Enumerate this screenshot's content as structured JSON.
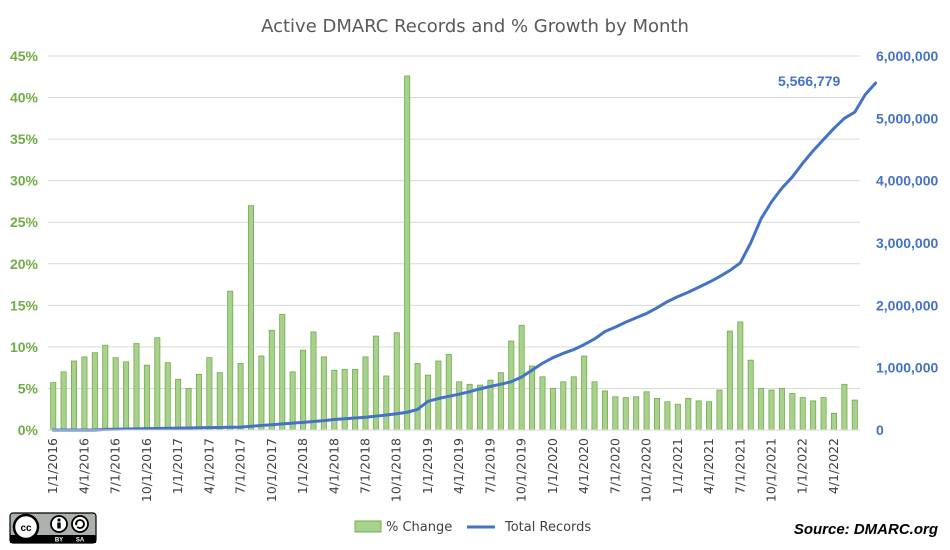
{
  "chart_data": {
    "type": "bar+line",
    "title": "Active DMARC Records and % Growth by Month",
    "x_labels": [
      "1/1/2016",
      "4/1/2016",
      "7/1/2016",
      "10/1/2016",
      "1/1/2017",
      "4/1/2017",
      "7/1/2017",
      "10/1/2017",
      "1/1/2018",
      "4/1/2018",
      "7/1/2018",
      "10/1/2018",
      "1/1/2019",
      "4/1/2019",
      "7/1/2019",
      "10/1/2019",
      "1/1/2020",
      "4/1/2020",
      "7/1/2020",
      "10/1/2020",
      "1/1/2021",
      "4/1/2021",
      "7/1/2021",
      "10/1/2021",
      "1/1/2022",
      "4/1/2022"
    ],
    "x_start": "1/1/2016",
    "y_left": {
      "ticks": [
        "0%",
        "5%",
        "10%",
        "15%",
        "20%",
        "25%",
        "30%",
        "35%",
        "40%",
        "45%"
      ],
      "ylim": [
        0,
        45
      ],
      "color": "#70ad47"
    },
    "y_right": {
      "ticks": [
        "0",
        "1,000,000",
        "2,000,000",
        "3,000,000",
        "4,000,000",
        "5,000,000",
        "6,000,000"
      ],
      "ylim": [
        0,
        6000000
      ],
      "color": "#4472c4"
    },
    "series": [
      {
        "name": "% Change",
        "kind": "bar",
        "axis": "left",
        "color": "#a9d18e",
        "values": [
          5.7,
          7.0,
          8.3,
          8.8,
          9.3,
          10.2,
          8.7,
          8.2,
          10.4,
          7.8,
          11.1,
          8.1,
          6.1,
          5.0,
          6.7,
          8.7,
          6.9,
          16.7,
          8.0,
          27.0,
          8.9,
          12.0,
          13.9,
          7.0,
          9.6,
          11.8,
          8.8,
          7.2,
          7.3,
          7.3,
          8.8,
          11.3,
          6.5,
          11.7,
          42.6,
          8.0,
          6.6,
          8.3,
          9.1,
          5.8,
          5.5,
          5.4,
          6.0,
          6.9,
          10.7,
          12.6,
          7.7,
          6.4,
          5.0,
          5.8,
          6.4,
          8.9,
          5.8,
          4.7,
          4.0,
          3.9,
          4.0,
          4.6,
          3.8,
          3.4,
          3.1,
          3.8,
          3.5,
          3.4,
          4.8,
          11.9,
          13.0,
          8.4,
          5.0,
          4.8,
          5.0,
          4.4,
          3.9,
          3.5,
          3.9,
          2.0,
          5.5,
          3.6
        ]
      },
      {
        "name": "Total Records",
        "kind": "line",
        "axis": "right",
        "color": "#4472c4",
        "values": [
          0,
          0,
          0,
          0,
          0,
          10000,
          13000,
          16000,
          19000,
          22000,
          25000,
          28000,
          31000,
          33000,
          36000,
          38000,
          41000,
          44000,
          47000,
          60000,
          72000,
          84000,
          98000,
          110000,
          123000,
          136000,
          150000,
          168000,
          181000,
          192000,
          205000,
          222000,
          240000,
          260000,
          285000,
          330000,
          460000,
          505000,
          540000,
          575000,
          615000,
          660000,
          700000,
          735000,
          775000,
          850000,
          960000,
          1070000,
          1160000,
          1230000,
          1290000,
          1370000,
          1460000,
          1580000,
          1650000,
          1730000,
          1800000,
          1870000,
          1960000,
          2060000,
          2140000,
          2210000,
          2290000,
          2370000,
          2460000,
          2560000,
          2680000,
          3000000,
          3390000,
          3660000,
          3880000,
          4060000,
          4280000,
          4480000,
          4660000,
          4840000,
          5000000,
          5100000,
          5380000,
          5566779
        ]
      }
    ],
    "annotation": "5,566,779",
    "legend": {
      "position": "bottom",
      "items": [
        "% Change",
        "Total Records"
      ]
    }
  },
  "source": "Source: DMARC.org",
  "license_badge": {
    "icon": "creative-commons-by-sa",
    "big": "cc",
    "labels": [
      "BY",
      "SA"
    ]
  }
}
